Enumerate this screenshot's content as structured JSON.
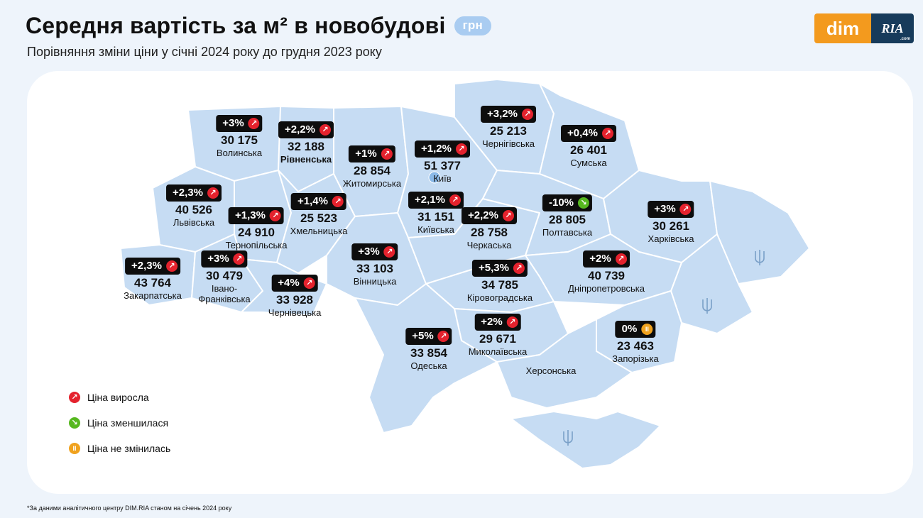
{
  "header": {
    "title": "Середня вартість за м² в новобудові",
    "unit": "грн",
    "subtitle": "Порівняння зміни ціни у січні 2024 року до грудня 2023 року"
  },
  "logo": {
    "left": "dim",
    "right": "RIA",
    "right_sub": ".com"
  },
  "colors": {
    "increase": "#e4222d",
    "decrease": "#56b81f",
    "unchanged": "#f0a21e",
    "map_fill": "#c6dcf3",
    "map_stroke": "#ffffff",
    "badge_bg": "#0d0d0d"
  },
  "regions": [
    {
      "change": "+3%",
      "trend": "up",
      "price": "30 175",
      "name": "Волинська",
      "bold": false
    },
    {
      "change": "+2,2%",
      "trend": "up",
      "price": "32 188",
      "name": "Рівненська",
      "bold": true
    },
    {
      "change": "+1%",
      "trend": "up",
      "price": "28 854",
      "name": "Житомирська",
      "bold": false
    },
    {
      "change": "+1,2%",
      "trend": "up",
      "price": "51 377",
      "name": "Київ",
      "bold": false
    },
    {
      "change": "+3,2%",
      "trend": "up",
      "price": "25 213",
      "name": "Чернігівська",
      "bold": false
    },
    {
      "change": "+0,4%",
      "trend": "up",
      "price": "26 401",
      "name": "Сумська",
      "bold": false
    },
    {
      "change": "+2,3%",
      "trend": "up",
      "price": "40 526",
      "name": "Львівська",
      "bold": false
    },
    {
      "change": "+1,4%",
      "trend": "up",
      "price": "25 523",
      "name": "Хмельницька",
      "bold": false
    },
    {
      "change": "+1,3%",
      "trend": "up",
      "price": "24 910",
      "name": "Тернопільська",
      "bold": false
    },
    {
      "change": "+2,1%",
      "trend": "up",
      "price": "31 151",
      "name": "Київська",
      "bold": false
    },
    {
      "change": "+2,2%",
      "trend": "up",
      "price": "28 758",
      "name": "Черкаська",
      "bold": false
    },
    {
      "change": "-10%",
      "trend": "down",
      "price": "28 805",
      "name": "Полтавська",
      "bold": false
    },
    {
      "change": "+3%",
      "trend": "up",
      "price": "30 261",
      "name": "Харківська",
      "bold": false
    },
    {
      "change": "+2,3%",
      "trend": "up",
      "price": "43 764",
      "name": "Закарпатська",
      "bold": false
    },
    {
      "change": "+3%",
      "trend": "up",
      "price": "30 479",
      "name": "Івано-\nФранківська",
      "bold": false
    },
    {
      "change": "+3%",
      "trend": "up",
      "price": "33 103",
      "name": "Вінницька",
      "bold": false
    },
    {
      "change": "+5,3%",
      "trend": "up",
      "price": "34 785",
      "name": "Кіровоградська",
      "bold": false
    },
    {
      "change": "+2%",
      "trend": "up",
      "price": "40 739",
      "name": "Дніпропетровська",
      "bold": false
    },
    {
      "change": "+4%",
      "trend": "up",
      "price": "33 928",
      "name": "Чернівецька",
      "bold": false
    },
    {
      "change": "+2%",
      "trend": "up",
      "price": "29 671",
      "name": "Миколаївська",
      "bold": false
    },
    {
      "change": "+5%",
      "trend": "up",
      "price": "33 854",
      "name": "Одеська",
      "bold": false
    },
    {
      "change": "0%",
      "trend": "flat",
      "price": "23 463",
      "name": "Запорізька",
      "bold": false
    }
  ],
  "unlabeled_region": "Херсонська",
  "legend": [
    {
      "trend": "up",
      "label": "Ціна виросла"
    },
    {
      "trend": "down",
      "label": "Ціна зменшилася"
    },
    {
      "trend": "flat",
      "label": "Ціна не змінилась"
    }
  ],
  "footnote": "*За даними аналітичного центру DIM.RIA станом на січень 2024 року"
}
